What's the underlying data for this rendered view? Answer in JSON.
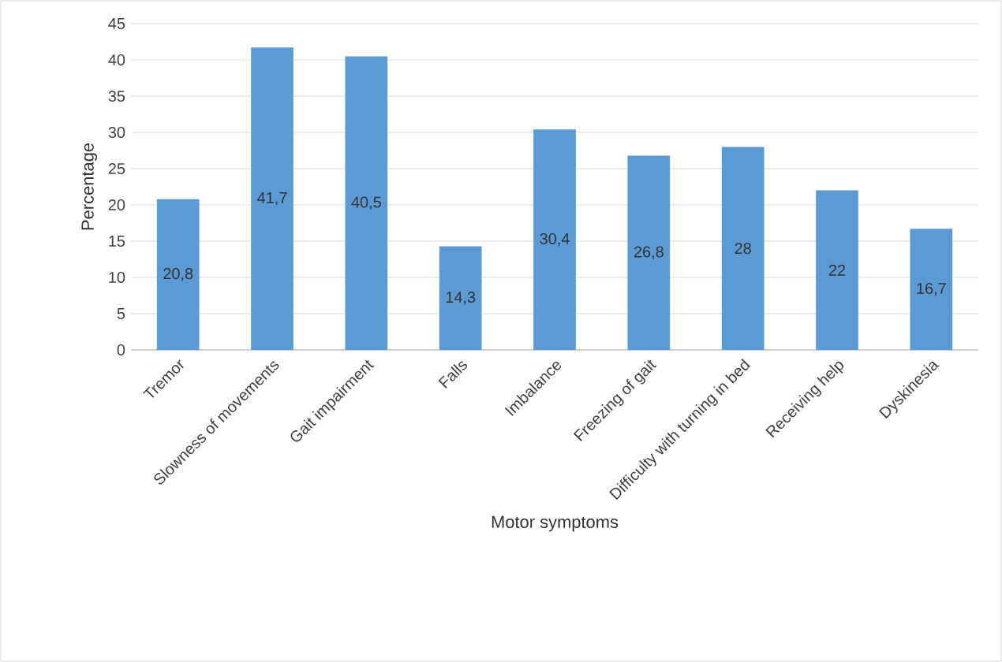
{
  "chart_data": {
    "type": "bar",
    "xlabel": "Motor symptoms",
    "ylabel": "Percentage",
    "categories": [
      "Tremor",
      "Slowness of movements",
      "Gait impairment",
      "Falls",
      "Imbalance",
      "Freezing of gait",
      "Difficulty with turning in bed",
      "Receiving help",
      "Dyskinesia"
    ],
    "values": [
      20.8,
      41.7,
      40.5,
      14.3,
      30.4,
      26.8,
      28,
      22,
      16.7
    ],
    "value_labels": [
      "20,8",
      "41,7",
      "40,5",
      "14,3",
      "30,4",
      "26,8",
      "28",
      "22",
      "16,7"
    ],
    "color": "#5b9bd5",
    "ylim": [
      0,
      45
    ],
    "yticks": [
      0,
      5,
      10,
      15,
      20,
      25,
      30,
      35,
      40,
      45
    ],
    "grid": "y"
  }
}
